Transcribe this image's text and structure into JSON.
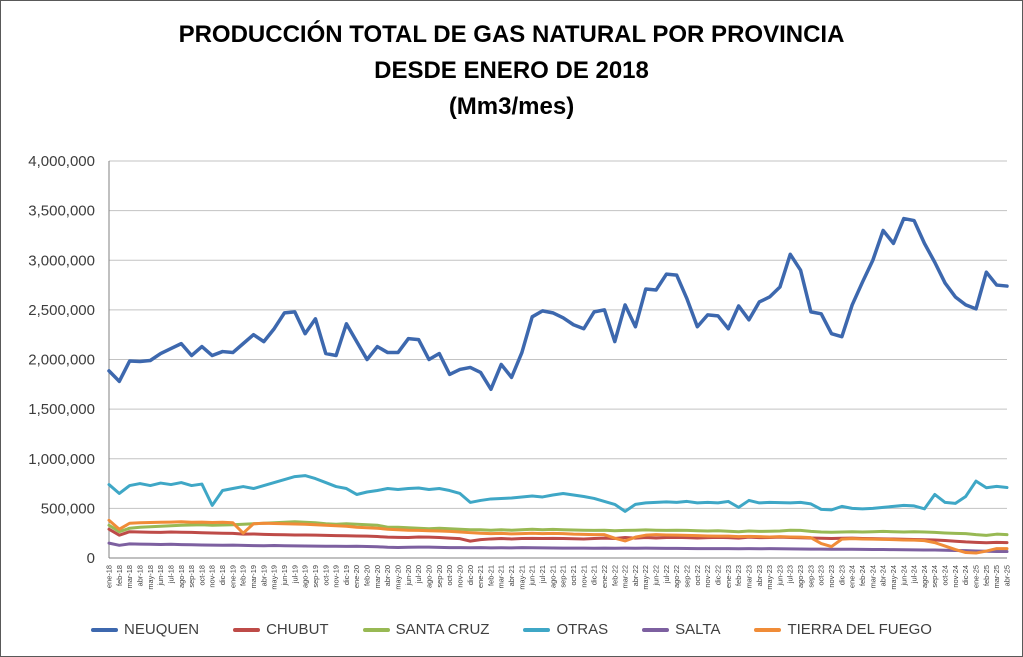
{
  "title": {
    "line1": "PRODUCCIÓN TOTAL DE GAS NATURAL POR PROVINCIA",
    "line2": "DESDE ENERO DE 2018",
    "line3": "(Mm3/mes)"
  },
  "axes": {
    "y_tick_labels_top_down": [
      "4,000,000",
      "3,500,000",
      "3,000,000",
      "2,500,000",
      "2,000,000",
      "1,500,000",
      "1,000,000",
      "500,000",
      "0"
    ],
    "grid_color": "#C3C3C3",
    "axis_color": "#808080",
    "label_color": "#3d3d3d"
  },
  "chart_data": {
    "type": "line",
    "title": "PRODUCCIÓN TOTAL DE GAS NATURAL POR PROVINCIA DESDE ENERO DE 2018 (Mm3/mes)",
    "xlabel": "",
    "ylabel": "",
    "ylim": [
      0,
      4000000
    ],
    "ytick_step": 500000,
    "grid": "horizontal",
    "legend_position": "bottom",
    "x": [
      "ene-18",
      "feb-18",
      "mar-18",
      "abr-18",
      "may-18",
      "jun-18",
      "jul-18",
      "ago-18",
      "sep-18",
      "oct-18",
      "nov-18",
      "dic-18",
      "ene-19",
      "feb-19",
      "mar-19",
      "abr-19",
      "may-19",
      "jun-19",
      "jul-19",
      "ago-19",
      "sep-19",
      "oct-19",
      "nov-19",
      "dic-19",
      "ene-20",
      "feb-20",
      "mar-20",
      "abr-20",
      "may-20",
      "jun-20",
      "jul-20",
      "ago-20",
      "sep-20",
      "oct-20",
      "nov-20",
      "dic-20",
      "ene-21",
      "feb-21",
      "mar-21",
      "abr-21",
      "may-21",
      "jun-21",
      "jul-21",
      "ago-21",
      "sep-21",
      "oct-21",
      "nov-21",
      "dic-21",
      "ene-22",
      "feb-22",
      "mar-22",
      "abr-22",
      "may-22",
      "jun-22",
      "jul-22",
      "ago-22",
      "sep-22",
      "oct-22",
      "nov-22",
      "dic-22",
      "ene-23",
      "feb-23",
      "mar-23",
      "abr-23",
      "may-23",
      "jun-23",
      "jul-23",
      "ago-23",
      "sep-23",
      "oct-23",
      "nov-23",
      "dic-23",
      "ene-24",
      "feb-24",
      "mar-24",
      "abr-24",
      "may-24",
      "jun-24",
      "jul-24",
      "ago-24",
      "sep-24",
      "oct-24",
      "nov-24",
      "dic-24",
      "ene-25",
      "feb-25",
      "mar-25",
      "abr-25"
    ],
    "series": [
      {
        "name": "NEUQUEN",
        "color": "#3D68AE",
        "values": [
          1885000,
          1780000,
          1985000,
          1980000,
          1990000,
          2060000,
          2110000,
          2160000,
          2040000,
          2130000,
          2040000,
          2080000,
          2070000,
          2160000,
          2250000,
          2180000,
          2310000,
          2470000,
          2480000,
          2260000,
          2410000,
          2060000,
          2040000,
          2360000,
          2180000,
          2000000,
          2130000,
          2070000,
          2070000,
          2210000,
          2200000,
          2000000,
          2060000,
          1850000,
          1900000,
          1920000,
          1870000,
          1700000,
          1950000,
          1820000,
          2070000,
          2430000,
          2490000,
          2470000,
          2420000,
          2350000,
          2310000,
          2480000,
          2500000,
          2180000,
          2550000,
          2330000,
          2710000,
          2700000,
          2860000,
          2850000,
          2610000,
          2330000,
          2450000,
          2440000,
          2310000,
          2540000,
          2400000,
          2580000,
          2630000,
          2730000,
          3060000,
          2900000,
          2480000,
          2460000,
          2260000,
          2230000,
          2550000,
          2780000,
          3000000,
          3300000,
          3170000,
          3420000,
          3400000,
          3170000,
          2980000,
          2770000,
          2630000,
          2550000,
          2510000,
          2880000,
          2750000,
          2740000
        ]
      },
      {
        "name": "CHUBUT",
        "color": "#BE4B48",
        "values": [
          290000,
          230000,
          265000,
          262000,
          260000,
          258000,
          262000,
          260000,
          258000,
          255000,
          252000,
          250000,
          248000,
          240000,
          242000,
          238000,
          236000,
          234000,
          232000,
          232000,
          230000,
          228000,
          226000,
          224000,
          222000,
          220000,
          216000,
          210000,
          208000,
          206000,
          212000,
          210000,
          206000,
          200000,
          195000,
          170000,
          185000,
          192000,
          196000,
          192000,
          196000,
          198000,
          196000,
          198000,
          196000,
          194000,
          192000,
          196000,
          200000,
          196000,
          206000,
          200000,
          206000,
          202000,
          206000,
          208000,
          205000,
          202000,
          205000,
          208000,
          205000,
          200000,
          210000,
          205000,
          207000,
          210000,
          207000,
          204000,
          202000,
          199000,
          196000,
          199000,
          200000,
          197000,
          195000,
          193000,
          191000,
          189000,
          187000,
          184000,
          181000,
          176000,
          169000,
          162000,
          158000,
          154000,
          157000,
          155000
        ]
      },
      {
        "name": "SANTA CRUZ",
        "color": "#98B954",
        "values": [
          330000,
          265000,
          300000,
          310000,
          315000,
          320000,
          325000,
          330000,
          332000,
          335000,
          330000,
          332000,
          335000,
          340000,
          345000,
          350000,
          355000,
          360000,
          365000,
          360000,
          355000,
          345000,
          340000,
          345000,
          340000,
          335000,
          330000,
          310000,
          310000,
          305000,
          300000,
          295000,
          300000,
          295000,
          290000,
          285000,
          285000,
          280000,
          285000,
          280000,
          285000,
          290000,
          285000,
          288000,
          285000,
          282000,
          280000,
          278000,
          280000,
          275000,
          278000,
          280000,
          283000,
          280000,
          278000,
          280000,
          278000,
          275000,
          272000,
          275000,
          270000,
          265000,
          272000,
          268000,
          270000,
          272000,
          280000,
          278000,
          268000,
          262000,
          260000,
          262000,
          265000,
          262000,
          265000,
          268000,
          265000,
          262000,
          265000,
          262000,
          258000,
          252000,
          248000,
          245000,
          235000,
          228000,
          240000,
          235000
        ]
      },
      {
        "name": "OTRAS",
        "color": "#3FA7C6",
        "values": [
          740000,
          650000,
          730000,
          750000,
          730000,
          755000,
          740000,
          760000,
          730000,
          745000,
          530000,
          680000,
          700000,
          720000,
          700000,
          730000,
          760000,
          790000,
          820000,
          830000,
          800000,
          760000,
          720000,
          700000,
          640000,
          665000,
          680000,
          700000,
          690000,
          700000,
          705000,
          690000,
          700000,
          680000,
          650000,
          560000,
          580000,
          595000,
          600000,
          605000,
          615000,
          625000,
          615000,
          635000,
          650000,
          635000,
          620000,
          600000,
          570000,
          540000,
          470000,
          540000,
          555000,
          560000,
          565000,
          560000,
          570000,
          555000,
          560000,
          555000,
          570000,
          510000,
          580000,
          555000,
          560000,
          558000,
          555000,
          560000,
          545000,
          490000,
          485000,
          520000,
          500000,
          495000,
          500000,
          510000,
          520000,
          530000,
          525000,
          495000,
          640000,
          560000,
          550000,
          620000,
          775000,
          708000,
          722000,
          710000
        ]
      },
      {
        "name": "SALTA",
        "color": "#7D60A0",
        "values": [
          150000,
          128000,
          142000,
          140000,
          138000,
          136000,
          138000,
          135000,
          133000,
          131000,
          130000,
          128000,
          130000,
          127000,
          125000,
          124000,
          126000,
          124000,
          122000,
          121000,
          120000,
          119000,
          118000,
          117000,
          118000,
          116000,
          114000,
          108000,
          106000,
          108000,
          110000,
          109000,
          107000,
          105000,
          104000,
          103000,
          104000,
          102000,
          103000,
          102000,
          104000,
          103000,
          102000,
          101000,
          100000,
          100000,
          99000,
          98000,
          100000,
          98000,
          99000,
          98000,
          99000,
          98000,
          97000,
          97000,
          96000,
          95000,
          95000,
          94000,
          95000,
          93000,
          94000,
          93000,
          94000,
          93000,
          92000,
          91000,
          90000,
          89000,
          88000,
          88000,
          88000,
          87000,
          86000,
          85000,
          84000,
          83000,
          82000,
          81000,
          80000,
          78000,
          76000,
          74000,
          70000,
          68000,
          66000,
          65000
        ]
      },
      {
        "name": "TIERRA DEL FUEGO",
        "color": "#F08C38",
        "values": [
          380000,
          290000,
          350000,
          355000,
          358000,
          360000,
          362000,
          365000,
          360000,
          362000,
          358000,
          360000,
          355000,
          250000,
          345000,
          350000,
          348000,
          345000,
          342000,
          340000,
          335000,
          330000,
          325000,
          320000,
          310000,
          305000,
          300000,
          290000,
          285000,
          280000,
          278000,
          275000,
          272000,
          268000,
          262000,
          255000,
          250000,
          245000,
          248000,
          243000,
          246000,
          250000,
          246000,
          248000,
          245000,
          240000,
          238000,
          235000,
          235000,
          200000,
          172000,
          210000,
          230000,
          235000,
          232000,
          230000,
          228000,
          225000,
          222000,
          220000,
          220000,
          215000,
          218000,
          215000,
          212000,
          215000,
          212000,
          210000,
          205000,
          145000,
          115000,
          190000,
          195000,
          192000,
          190000,
          188000,
          185000,
          182000,
          180000,
          175000,
          155000,
          120000,
          85000,
          55000,
          50000,
          70000,
          95000,
          95000
        ]
      }
    ]
  }
}
